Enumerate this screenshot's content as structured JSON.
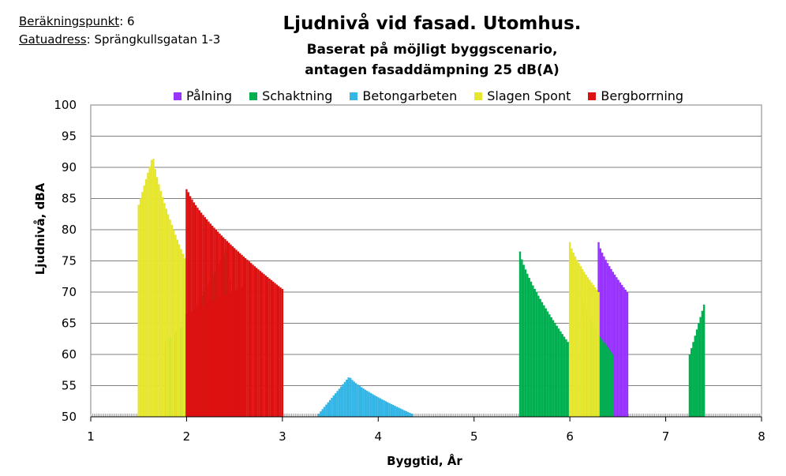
{
  "info": {
    "berakningspunkt_label": "Beräkningspunkt",
    "berakningspunkt_value": ": 6",
    "gatuadress_label": "Gatuadress",
    "gatuadress_value": ": Sprängkullsgatan 1-3"
  },
  "chart_data": {
    "type": "bar",
    "title": "Ljudnivå vid fasad. Utomhus.",
    "subtitle_line1": "Baserat på möjligt byggscenario,",
    "subtitle_line2": "antagen fasaddämpning 25 dB(A)",
    "xlabel": "Byggtid, År",
    "ylabel": "Ljudnivå, dBA",
    "xlim": [
      1,
      8
    ],
    "ylim": [
      50,
      100
    ],
    "xticks": [
      1,
      2,
      3,
      4,
      5,
      6,
      7,
      8
    ],
    "yticks": [
      50,
      55,
      60,
      65,
      70,
      75,
      80,
      85,
      90,
      95,
      100
    ],
    "grid": "horizontal",
    "legend_position": "top",
    "baseline_value": 50,
    "series": [
      {
        "name": "Pålning",
        "color": "#9933ff",
        "segments": [
          {
            "x": [
              6.3,
              6.6
            ],
            "peak_x": 6.3,
            "y_start": 78,
            "y_peak": 78,
            "y_end": 70
          }
        ]
      },
      {
        "name": "Schaktning",
        "color": "#00b050",
        "segments": [
          {
            "x": [
              1.78,
              2.0
            ],
            "peak_x": 2.0,
            "y_start": 62,
            "y_peak": 65,
            "y_end": 65
          },
          {
            "x": [
              2.0,
              2.45
            ],
            "peak_x": 2.42,
            "y_start": 65,
            "y_peak": 77,
            "y_end": 72
          },
          {
            "x": [
              5.48,
              5.98
            ],
            "peak_x": 5.48,
            "y_start": 76.5,
            "y_peak": 76.5,
            "y_end": 62
          },
          {
            "x": [
              6.15,
              6.45
            ],
            "peak_x": 6.15,
            "y_start": 68,
            "y_peak": 68,
            "y_end": 60
          },
          {
            "x": [
              7.25,
              7.4
            ],
            "peak_x": 7.4,
            "y_start": 60,
            "y_peak": 68,
            "y_end": 68
          }
        ]
      },
      {
        "name": "Betongarbeten",
        "color": "#33b5e5",
        "segments": [
          {
            "x": [
              3.38,
              4.35
            ],
            "peak_x": 3.7,
            "y_start": 50.5,
            "y_peak": 56.5,
            "y_end": 50.5
          }
        ]
      },
      {
        "name": "Slagen Spont",
        "color": "#e6e62e",
        "segments": [
          {
            "x": [
              1.5,
              2.02
            ],
            "peak_x": 1.65,
            "y_start": 84,
            "y_peak": 92,
            "y_end": 74
          },
          {
            "x": [
              6.0,
              6.3
            ],
            "peak_x": 6.0,
            "y_start": 78,
            "y_peak": 78,
            "y_end": 70
          }
        ]
      },
      {
        "name": "Bergborrning",
        "color": "#dd1111",
        "segments": [
          {
            "x": [
              2.0,
              3.0
            ],
            "peak_x": 2.01,
            "y_start": 86.5,
            "y_peak": 86.5,
            "y_end": 70.5
          },
          {
            "x": [
              2.0,
              2.6
            ],
            "peak_x": 2.6,
            "y_start": 66.5,
            "y_peak": 71,
            "y_end": 71
          }
        ]
      }
    ]
  }
}
